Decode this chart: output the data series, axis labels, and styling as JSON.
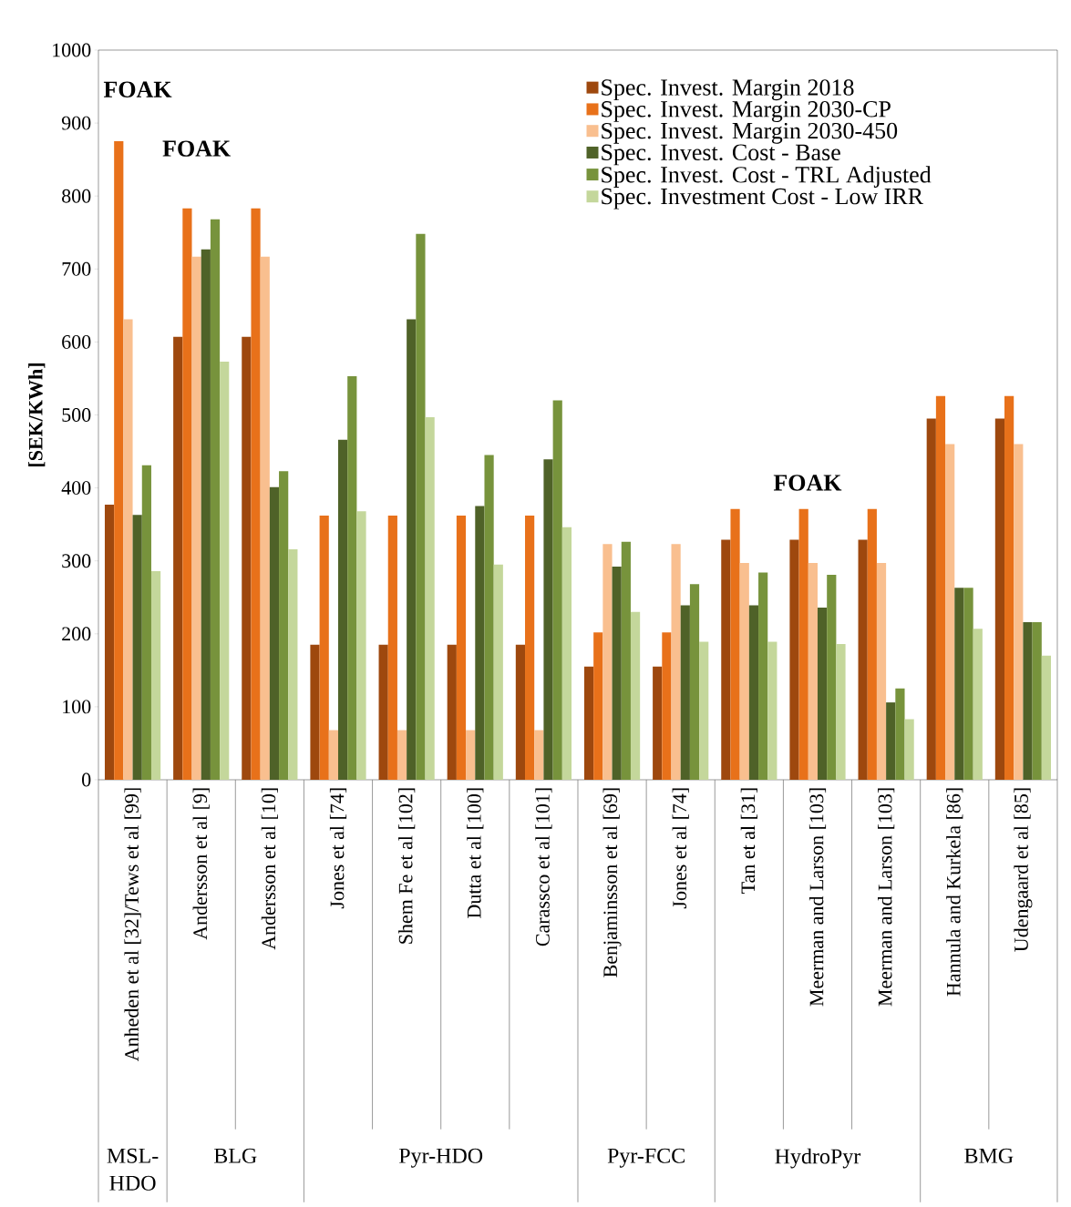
{
  "chart_data": {
    "type": "bar",
    "ylabel": "[SEK/KWh]",
    "categories": [
      "Anheden et al [32]/Tews et al [99]",
      "Andersson et al [9]",
      "Andersson et al [10]",
      "Jones et al [74]",
      "Shem Fe et al [102]",
      "Dutta et al [100]",
      "Carassco et al [101]",
      "Benjaminsson et al [69]",
      "Jones et al [74]",
      "Tan et al [31]",
      "Meerman and Larson [103]",
      "Meerman and Larson [103]",
      "Hannula and Kurkela [86]",
      "Udengaard et al [85]"
    ],
    "series": [
      {
        "name": "Spec. Invest. Margin 2018",
        "color": "#9e480e",
        "values": [
          377,
          607,
          607,
          185,
          185,
          185,
          185,
          155,
          155,
          329,
          329,
          329,
          495,
          495
        ]
      },
      {
        "name": "Spec. Invest. Margin 2030-CP",
        "color": "#e8711a",
        "values": [
          875,
          783,
          783,
          362,
          362,
          362,
          362,
          202,
          202,
          371,
          371,
          371,
          526,
          526
        ]
      },
      {
        "name": "Spec. Invest. Margin 2030-450",
        "color": "#f9bf8f",
        "values": [
          631,
          717,
          717,
          68,
          68,
          68,
          68,
          323,
          323,
          297,
          297,
          297,
          460,
          460
        ]
      },
      {
        "name": "Spec. Invest. Cost - Base",
        "color": "#4f6228",
        "values": [
          363,
          727,
          401,
          466,
          631,
          375,
          439,
          292,
          239,
          239,
          236,
          106,
          263,
          216
        ]
      },
      {
        "name": "Spec. Invest. Cost - TRL Adjusted",
        "color": "#77933c",
        "values": [
          431,
          768,
          423,
          553,
          748,
          445,
          520,
          326,
          268,
          284,
          281,
          125,
          263,
          216
        ]
      },
      {
        "name": "Spec. Investment Cost - Low IRR",
        "color": "#c4d79b",
        "values": [
          286,
          573,
          316,
          368,
          497,
          295,
          346,
          230,
          189,
          189,
          186,
          83,
          207,
          170
        ]
      }
    ],
    "ylim": [
      0,
      1000
    ],
    "yticks": [
      0,
      100,
      200,
      300,
      400,
      500,
      600,
      700,
      800,
      900,
      1000
    ],
    "legend": "top right",
    "annotations": [
      "FOAK",
      "FOAK",
      "FOAK",
      "MSL-HDO",
      "BLG",
      "Pyr-HDO",
      "Pyr-FCC",
      "HydroPyr",
      "BMG"
    ]
  }
}
